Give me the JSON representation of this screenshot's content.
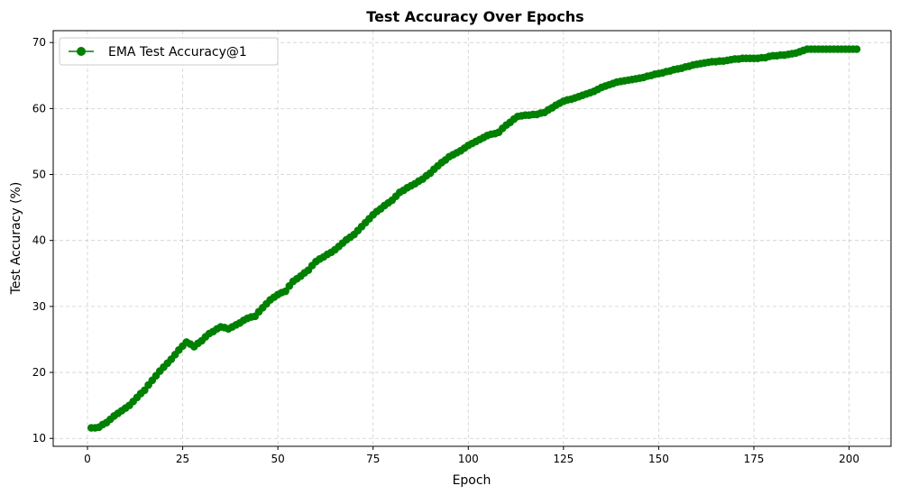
{
  "chart_data": {
    "type": "line",
    "title": "Test Accuracy Over Epochs",
    "xlabel": "Epoch",
    "ylabel": "Test Accuracy (%)",
    "xlim": [
      -9,
      211
    ],
    "ylim": [
      8.8,
      71.8
    ],
    "xticks": [
      0,
      25,
      50,
      75,
      100,
      125,
      150,
      175,
      200
    ],
    "yticks": [
      10,
      20,
      30,
      40,
      50,
      60,
      70
    ],
    "grid": true,
    "legend": {
      "placement": "top-left"
    },
    "color": "#008000",
    "anchors": [
      [
        1,
        11.6
      ],
      [
        3,
        11.7
      ],
      [
        5,
        12.4
      ],
      [
        7,
        13.4
      ],
      [
        9,
        14.2
      ],
      [
        11,
        15.0
      ],
      [
        13,
        16.2
      ],
      [
        15,
        17.3
      ],
      [
        17,
        18.8
      ],
      [
        19,
        20.2
      ],
      [
        21,
        21.4
      ],
      [
        23,
        22.7
      ],
      [
        25,
        24.0
      ],
      [
        26,
        24.6
      ],
      [
        28,
        23.9
      ],
      [
        30,
        24.8
      ],
      [
        32,
        25.9
      ],
      [
        35,
        26.9
      ],
      [
        37,
        26.6
      ],
      [
        40,
        27.5
      ],
      [
        42,
        28.2
      ],
      [
        44,
        28.5
      ],
      [
        46,
        29.8
      ],
      [
        48,
        31.0
      ],
      [
        50,
        31.8
      ],
      [
        52,
        32.3
      ],
      [
        54,
        33.8
      ],
      [
        56,
        34.6
      ],
      [
        58,
        35.5
      ],
      [
        60,
        36.8
      ],
      [
        62,
        37.5
      ],
      [
        65,
        38.6
      ],
      [
        68,
        40.1
      ],
      [
        70,
        40.9
      ],
      [
        73,
        42.7
      ],
      [
        75,
        43.9
      ],
      [
        78,
        45.3
      ],
      [
        80,
        46.1
      ],
      [
        82,
        47.3
      ],
      [
        85,
        48.3
      ],
      [
        88,
        49.3
      ],
      [
        90,
        50.2
      ],
      [
        92,
        51.3
      ],
      [
        95,
        52.7
      ],
      [
        98,
        53.6
      ],
      [
        100,
        54.4
      ],
      [
        103,
        55.3
      ],
      [
        105,
        55.9
      ],
      [
        108,
        56.4
      ],
      [
        110,
        57.5
      ],
      [
        113,
        58.8
      ],
      [
        115,
        59.0
      ],
      [
        118,
        59.1
      ],
      [
        120,
        59.4
      ],
      [
        123,
        60.5
      ],
      [
        125,
        61.1
      ],
      [
        128,
        61.6
      ],
      [
        130,
        62.0
      ],
      [
        133,
        62.6
      ],
      [
        135,
        63.2
      ],
      [
        138,
        63.8
      ],
      [
        140,
        64.1
      ],
      [
        143,
        64.4
      ],
      [
        145,
        64.6
      ],
      [
        148,
        65.0
      ],
      [
        150,
        65.3
      ],
      [
        153,
        65.7
      ],
      [
        155,
        66.0
      ],
      [
        158,
        66.4
      ],
      [
        160,
        66.7
      ],
      [
        163,
        67.0
      ],
      [
        165,
        67.1
      ],
      [
        168,
        67.3
      ],
      [
        170,
        67.5
      ],
      [
        173,
        67.6
      ],
      [
        175,
        67.6
      ],
      [
        178,
        67.7
      ],
      [
        180,
        68.0
      ],
      [
        183,
        68.1
      ],
      [
        185,
        68.3
      ],
      [
        187,
        68.6
      ],
      [
        189,
        69.0
      ],
      [
        195,
        69.0
      ],
      [
        202,
        69.0
      ]
    ],
    "series": [
      {
        "name": "EMA Test Accuracy@1",
        "x": [],
        "y": []
      }
    ]
  }
}
